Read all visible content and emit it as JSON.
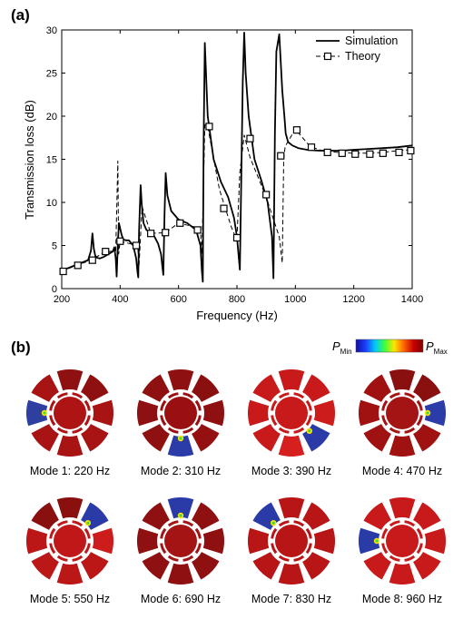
{
  "panel_a_label": "(a)",
  "panel_b_label": "(b)",
  "chart_data": {
    "type": "line",
    "xlabel": "Frequency (Hz)",
    "ylabel": "Transmission loss (dB)",
    "xlim": [
      200,
      1400
    ],
    "ylim": [
      0,
      30
    ],
    "xticks": [
      200,
      400,
      600,
      800,
      1000,
      1200,
      1400
    ],
    "yticks": [
      0,
      5,
      10,
      15,
      20,
      25,
      30
    ],
    "legend_position": "top-right",
    "series": [
      {
        "name": "Simulation",
        "style": "solid",
        "color": "#000000",
        "x": [
          200,
          230,
          260,
          290,
          300,
          305,
          310,
          315,
          320,
          330,
          345,
          360,
          375,
          380,
          385,
          388,
          392,
          396,
          400,
          404,
          410,
          420,
          430,
          445,
          455,
          460,
          462,
          465,
          470,
          474,
          480,
          490,
          500,
          515,
          530,
          540,
          545,
          548,
          552,
          556,
          562,
          575,
          600,
          630,
          660,
          675,
          680,
          683,
          686,
          690,
          700,
          720,
          745,
          770,
          790,
          800,
          810,
          815,
          820,
          825,
          830,
          840,
          860,
          885,
          905,
          920,
          925,
          930,
          935,
          945,
          955,
          962,
          967,
          975,
          990,
          1010,
          1040,
          1080,
          1120,
          1160,
          1200,
          1250,
          1300,
          1350,
          1400
        ],
        "values": [
          2.1,
          2.5,
          2.9,
          3.3,
          4.4,
          6.4,
          4.6,
          3.8,
          3.6,
          3.5,
          3.7,
          4.0,
          4.3,
          4.8,
          3.5,
          1.4,
          5.2,
          7.6,
          7.0,
          6.4,
          5.7,
          5.6,
          5.6,
          5.0,
          3.5,
          1.8,
          1.3,
          6.8,
          12.0,
          9.8,
          7.6,
          6.8,
          6.6,
          6.2,
          5.2,
          4.0,
          2.4,
          1.6,
          8.5,
          13.4,
          10.8,
          9.0,
          8.0,
          7.6,
          6.8,
          5.0,
          2.0,
          0.8,
          17.0,
          28.5,
          20.0,
          15.0,
          12.4,
          10.6,
          8.2,
          6.0,
          2.2,
          13.0,
          24.0,
          29.7,
          25.0,
          20.0,
          15.0,
          12.4,
          10.0,
          6.0,
          1.2,
          18.0,
          27.5,
          29.5,
          23.0,
          20.2,
          18.0,
          17.0,
          16.6,
          16.3,
          16.1,
          16.0,
          16.0,
          16.0,
          16.1,
          16.2,
          16.3,
          16.4,
          16.6
        ]
      },
      {
        "name": "Theory",
        "style": "dashed",
        "color": "#000000",
        "marker": "square",
        "x": [
          200,
          250,
          300,
          345,
          385,
          392,
          395,
          400,
          460,
          465,
          475,
          505,
          555,
          600,
          650,
          675,
          680,
          690,
          700,
          740,
          780,
          795,
          800,
          810,
          825,
          845,
          900,
          945,
          955,
          960,
          965,
          1000,
          1050,
          1100,
          1150,
          1200,
          1250,
          1300,
          1350,
          1400
        ],
        "values": [
          2.0,
          2.7,
          3.3,
          4.2,
          4.4,
          14.8,
          4.0,
          5.5,
          5.0,
          2.8,
          9.5,
          6.4,
          6.5,
          7.6,
          7.2,
          6.8,
          4.0,
          19.0,
          18.8,
          11.5,
          7.2,
          6.0,
          5.8,
          13.5,
          17.8,
          15.2,
          10.6,
          6.0,
          3.0,
          15.0,
          16.5,
          18.5,
          16.5,
          15.9,
          15.8,
          15.7,
          15.7,
          15.8,
          16.0,
          16.1
        ],
        "marker_x": [
          205,
          255,
          305,
          350,
          400,
          455,
          505,
          555,
          605,
          665,
          705,
          755,
          800,
          845,
          900,
          950,
          1005,
          1055,
          1110,
          1160,
          1205,
          1255,
          1300,
          1355,
          1395
        ],
        "marker_values": [
          2.0,
          2.7,
          3.3,
          4.3,
          5.5,
          5.0,
          6.4,
          6.5,
          7.6,
          6.8,
          18.8,
          9.3,
          5.9,
          17.4,
          10.9,
          15.4,
          18.4,
          16.4,
          15.8,
          15.7,
          15.6,
          15.6,
          15.7,
          15.8,
          16.0
        ]
      }
    ]
  },
  "colorbar": {
    "min_label": "P",
    "min_sub": "Min",
    "max_label": "P",
    "max_sub": "Max",
    "colors": [
      "#1010a0",
      "#1e3cff",
      "#00c8ff",
      "#3cff3c",
      "#ffe600",
      "#ff6400",
      "#c80000",
      "#800000"
    ]
  },
  "modes": [
    {
      "label": "Mode 1: 220 Hz",
      "base": "#ae1414",
      "segments": [
        "#8e1010",
        "#8e1010",
        "#a81313",
        "#a81313",
        "#a81313",
        "#a81313",
        "#2e3fa0",
        "#a81313"
      ],
      "hot": 6
    },
    {
      "label": "Mode 2: 310 Hz",
      "base": "#9a1010",
      "segments": [
        "#8e1010",
        "#8a0f0f",
        "#8e1010",
        "#951111",
        "#2b3ca8",
        "#8e1010",
        "#8e1010",
        "#8e1010"
      ],
      "hot": 4
    },
    {
      "label": "Mode 3: 390 Hz",
      "base": "#c81a1a",
      "segments": [
        "#c81a1a",
        "#c81a1a",
        "#cc1c1c",
        "#2a3ba8",
        "#d61f1f",
        "#c81a1a",
        "#c81a1a",
        "#c81a1a"
      ],
      "hot": 3
    },
    {
      "label": "Mode 4: 470 Hz",
      "base": "#a41414",
      "segments": [
        "#8a0f0f",
        "#8a0f0f",
        "#2b3ca8",
        "#a01212",
        "#a01212",
        "#a01212",
        "#a01212",
        "#a01212"
      ],
      "hot": 2
    },
    {
      "label": "Mode 5: 550 Hz",
      "base": "#c01818",
      "segments": [
        "#8a0f0f",
        "#2a3ba8",
        "#cc1c1c",
        "#bb1717",
        "#bb1717",
        "#bb1717",
        "#bb1717",
        "#8a0f0f"
      ],
      "hot": 1
    },
    {
      "label": "Mode 6: 690 Hz",
      "base": "#a41414",
      "segments": [
        "#2a3ba8",
        "#8e1010",
        "#8e1010",
        "#8e1010",
        "#8e1010",
        "#8e1010",
        "#8e1010",
        "#8e1010"
      ],
      "hot": 0
    },
    {
      "label": "Mode 7: 830 Hz",
      "base": "#b81616",
      "segments": [
        "#b81616",
        "#b81616",
        "#b81616",
        "#b81616",
        "#b81616",
        "#b81616",
        "#b81616",
        "#2a3ba8"
      ],
      "hot": 7
    },
    {
      "label": "Mode 8: 960 Hz",
      "base": "#c81a1a",
      "segments": [
        "#c81a1a",
        "#c81a1a",
        "#c81a1a",
        "#c81a1a",
        "#c81a1a",
        "#c81a1a",
        "#2a3ba8",
        "#c81a1a"
      ],
      "hot": 6
    }
  ]
}
